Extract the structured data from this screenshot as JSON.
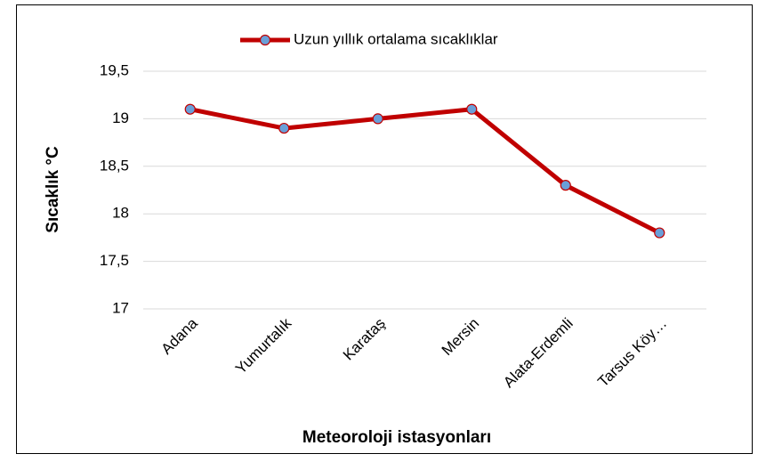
{
  "chart_data": {
    "type": "line",
    "categories": [
      "Adana",
      "Yumurtalık",
      "Karataş",
      "Mersin",
      "Alata-Erdemli",
      "Tarsus Köy…"
    ],
    "series": [
      {
        "name": "Uzun yıllık ortalama sıcaklıklar",
        "color": "#c00000",
        "marker_color": "#6a9fd8",
        "values": [
          19.1,
          18.9,
          19.0,
          19.1,
          18.3,
          17.8
        ]
      }
    ],
    "ylim": [
      17,
      19.5
    ],
    "yticks": [
      17,
      {
        "value": 17.5,
        "label": "17,5"
      },
      18,
      {
        "value": 18.5,
        "label": "18,5"
      },
      19,
      {
        "value": 19.5,
        "label": "19,5"
      }
    ],
    "y_label": "Sıcaklık °C",
    "x_label": "Meteoroloji istasyonları",
    "grid": true,
    "legend": "top"
  }
}
